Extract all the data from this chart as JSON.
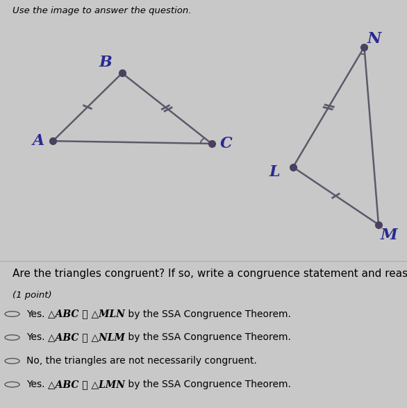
{
  "title": "Use the image to answer the question.",
  "outer_bg": "#c8c8c8",
  "panel_bg": "#e8e8e8",
  "lower_bg": "#f0f0f0",
  "triangle1": {
    "vertices": {
      "A": [
        0.13,
        0.46
      ],
      "B": [
        0.3,
        0.72
      ],
      "C": [
        0.52,
        0.45
      ]
    },
    "label_offsets": {
      "A": [
        -0.035,
        0.0
      ],
      "B": [
        -0.04,
        0.04
      ],
      "C": [
        0.035,
        0.0
      ]
    },
    "color": "#5a5a6a",
    "angle_vertex": "C",
    "tick_single_side": "AB",
    "tick_double_side": "BC"
  },
  "triangle2": {
    "vertices": {
      "N": [
        0.895,
        0.82
      ],
      "L": [
        0.72,
        0.36
      ],
      "M": [
        0.93,
        0.14
      ]
    },
    "label_offsets": {
      "N": [
        0.025,
        0.03
      ],
      "L": [
        -0.045,
        -0.02
      ],
      "M": [
        0.025,
        -0.04
      ]
    },
    "color": "#5a5a6a",
    "angle_vertex": "N",
    "tick_single_side": "LM",
    "tick_double_side": "NL"
  },
  "dot_color": "#4a4060",
  "dot_size": 7,
  "label_color": "#2a2a90",
  "label_fontsize": 16,
  "question_text": "Are the triangles congruent? If so, write a congruence statement and reason why.",
  "point_text": "(1 point)",
  "options": [
    "Yes. △ABC ≅ △MLN by the SSA Congruence Theorem.",
    "Yes. △ABC ≅ △NLM by the SSA Congruence Theorem.",
    "No, the triangles are not necessarily congruent.",
    "Yes. △ABC ≅ △LMN by the SSA Congruence Theorem."
  ],
  "option_bold_parts": [
    "△ABC ≅ △MLN",
    "△ABC ≅ △NLM",
    "",
    "△ABC ≅ △LMN"
  ],
  "option_fontsize": 10,
  "question_fontsize": 11
}
